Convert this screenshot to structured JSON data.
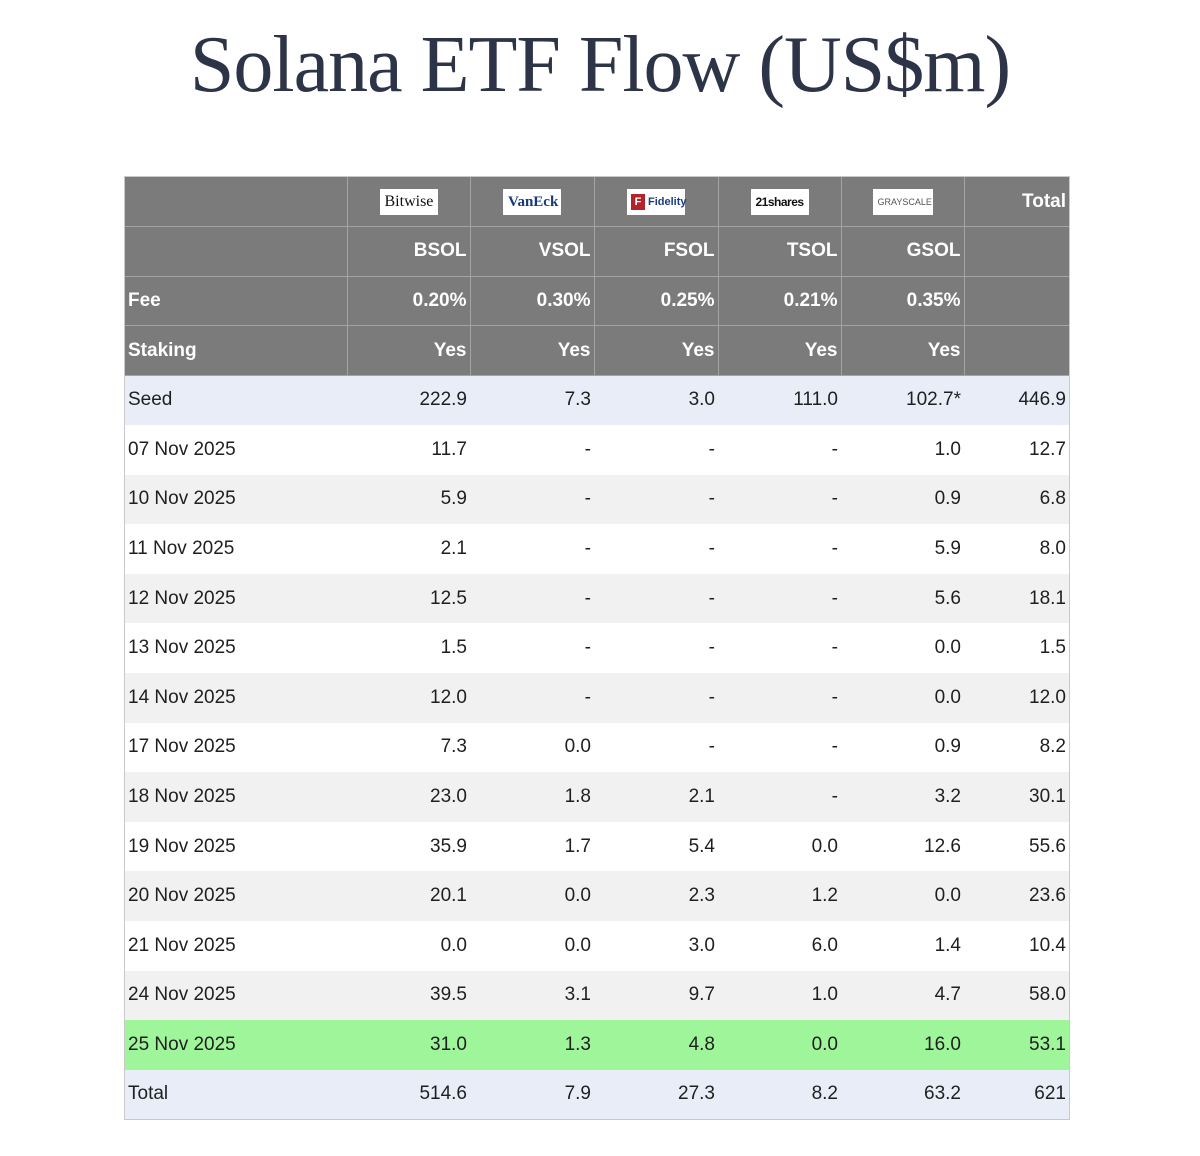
{
  "title": "Solana ETF Flow (US$m)",
  "colors": {
    "title": "#2e3447",
    "header_bg": "#7b7b7b",
    "seed_total_bg": "#e8edf8",
    "stripe_bg": "#f1f1f1",
    "highlight_bg": "#9ff59a"
  },
  "issuers": [
    {
      "logo": "Bitwise",
      "icon": "bitwise-logo"
    },
    {
      "logo": "VanEck",
      "icon": "vaneck-logo"
    },
    {
      "logo": "Fidelity",
      "icon": "fidelity-logo"
    },
    {
      "logo": "21shares",
      "icon": "21shares-logo"
    },
    {
      "logo": "GRAYSCALE",
      "icon": "grayscale-logo"
    }
  ],
  "total_header": "Total",
  "tickers": [
    "BSOL",
    "VSOL",
    "FSOL",
    "TSOL",
    "GSOL"
  ],
  "fee": {
    "label": "Fee",
    "values": [
      "0.20%",
      "0.30%",
      "0.25%",
      "0.21%",
      "0.35%"
    ]
  },
  "staking": {
    "label": "Staking",
    "values": [
      "Yes",
      "Yes",
      "Yes",
      "Yes",
      "Yes"
    ]
  },
  "rows": [
    {
      "label": "Seed",
      "values": [
        "222.9",
        "7.3",
        "3.0",
        "111.0",
        "102.7*",
        "446.9"
      ]
    },
    {
      "label": "07 Nov 2025",
      "values": [
        "11.7",
        "-",
        "-",
        "-",
        "1.0",
        "12.7"
      ]
    },
    {
      "label": "10 Nov 2025",
      "values": [
        "5.9",
        "-",
        "-",
        "-",
        "0.9",
        "6.8"
      ]
    },
    {
      "label": "11 Nov 2025",
      "values": [
        "2.1",
        "-",
        "-",
        "-",
        "5.9",
        "8.0"
      ]
    },
    {
      "label": "12 Nov 2025",
      "values": [
        "12.5",
        "-",
        "-",
        "-",
        "5.6",
        "18.1"
      ]
    },
    {
      "label": "13 Nov 2025",
      "values": [
        "1.5",
        "-",
        "-",
        "-",
        "0.0",
        "1.5"
      ]
    },
    {
      "label": "14 Nov 2025",
      "values": [
        "12.0",
        "-",
        "-",
        "-",
        "0.0",
        "12.0"
      ]
    },
    {
      "label": "17 Nov 2025",
      "values": [
        "7.3",
        "0.0",
        "-",
        "-",
        "0.9",
        "8.2"
      ]
    },
    {
      "label": "18 Nov 2025",
      "values": [
        "23.0",
        "1.8",
        "2.1",
        "-",
        "3.2",
        "30.1"
      ]
    },
    {
      "label": "19 Nov 2025",
      "values": [
        "35.9",
        "1.7",
        "5.4",
        "0.0",
        "12.6",
        "55.6"
      ]
    },
    {
      "label": "20 Nov 2025",
      "values": [
        "20.1",
        "0.0",
        "2.3",
        "1.2",
        "0.0",
        "23.6"
      ]
    },
    {
      "label": "21 Nov 2025",
      "values": [
        "0.0",
        "0.0",
        "3.0",
        "6.0",
        "1.4",
        "10.4"
      ]
    },
    {
      "label": "24 Nov 2025",
      "values": [
        "39.5",
        "3.1",
        "9.7",
        "1.0",
        "4.7",
        "58.0"
      ]
    },
    {
      "label": "25 Nov 2025",
      "values": [
        "31.0",
        "1.3",
        "4.8",
        "0.0",
        "16.0",
        "53.1"
      ],
      "highlight": true
    },
    {
      "label": "Total",
      "values": [
        "514.6",
        "7.9",
        "27.3",
        "8.2",
        "63.2",
        "621"
      ]
    }
  ]
}
